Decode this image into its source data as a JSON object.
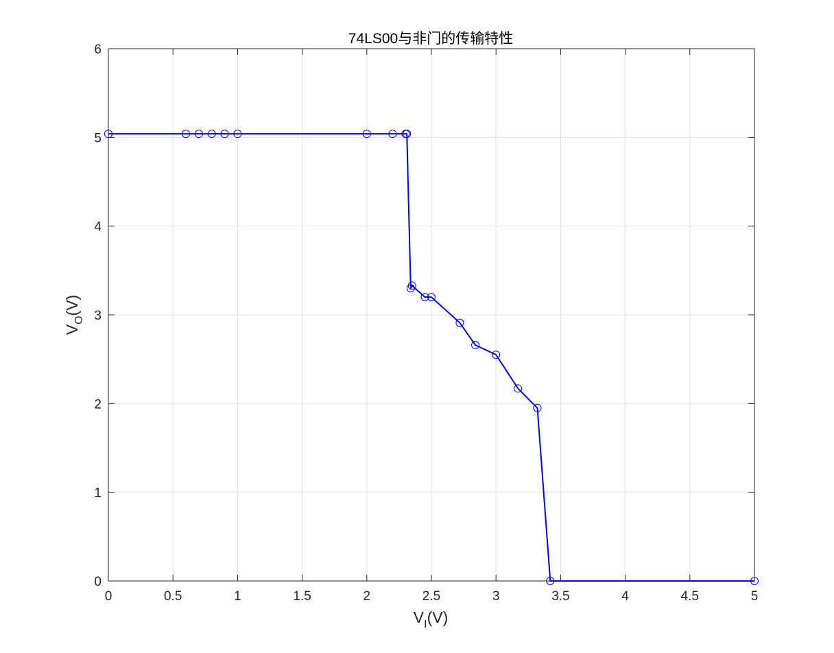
{
  "chart_data": {
    "type": "line",
    "title": "74LS00与非门的传输特性",
    "xlabel": {
      "main": "V",
      "sub": "I",
      "unit": "(V)"
    },
    "ylabel": {
      "main": "V",
      "sub": "O",
      "unit": "(V)"
    },
    "xlim": [
      0,
      5
    ],
    "ylim": [
      0,
      6
    ],
    "xticks": [
      0,
      0.5,
      1,
      1.5,
      2,
      2.5,
      3,
      3.5,
      4,
      4.5,
      5
    ],
    "xtick_labels": [
      "0",
      "0.5",
      "1",
      "1.5",
      "2",
      "2.5",
      "3",
      "3.5",
      "4",
      "4.5",
      "5"
    ],
    "yticks": [
      0,
      1,
      2,
      3,
      4,
      5,
      6
    ],
    "ytick_labels": [
      "0",
      "1",
      "2",
      "3",
      "4",
      "5",
      "6"
    ],
    "grid": true,
    "colors": {
      "series": "#0000ff",
      "grid": "#e0e0e0",
      "axis": "#262626"
    },
    "series": [
      {
        "marker": "circle-open",
        "x": [
          0,
          0.6,
          0.7,
          0.8,
          0.9,
          1.0,
          2.0,
          2.2,
          2.3,
          2.31,
          2.34,
          2.35,
          2.45,
          2.5,
          2.72,
          2.84,
          3.0,
          3.17,
          3.32,
          3.42,
          5.0
        ],
        "y": [
          5.04,
          5.04,
          5.04,
          5.04,
          5.04,
          5.04,
          5.04,
          5.04,
          5.04,
          5.04,
          3.3,
          3.33,
          3.2,
          3.2,
          2.91,
          2.66,
          2.55,
          2.17,
          1.95,
          0.0,
          0.0
        ]
      }
    ]
  }
}
